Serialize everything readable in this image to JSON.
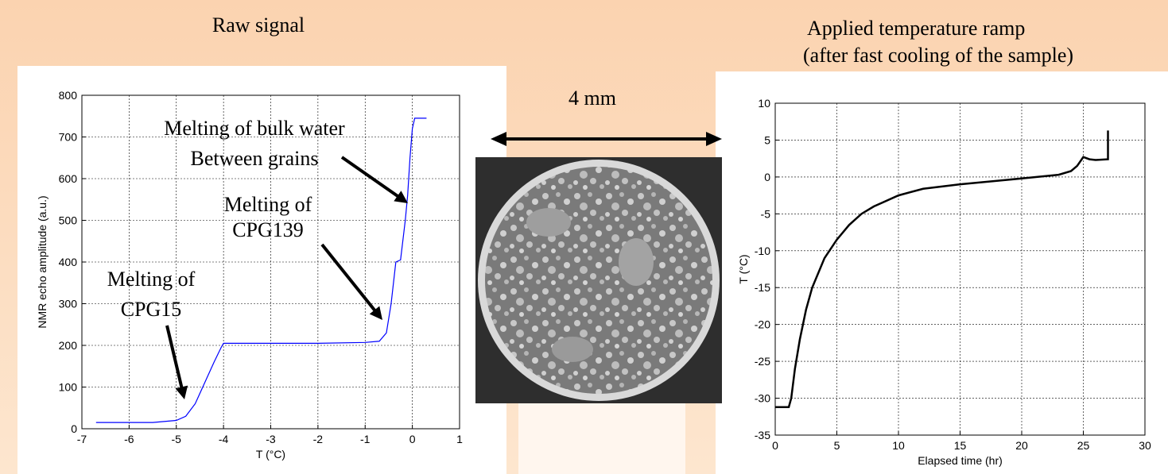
{
  "slide": {
    "left_title": "Raw signal",
    "right_title": [
      "Applied temperature ramp",
      "(after fast cooling of the sample)"
    ],
    "scale_label": "4 mm"
  },
  "chart_data": [
    {
      "type": "line",
      "x_label": "T (°C)",
      "y_label": "NMR echo amplitude (a.u.)",
      "x": [
        -6.7,
        -5.5,
        -5.0,
        -4.8,
        -4.6,
        -4.4,
        -4.2,
        -4.05,
        -4.0,
        -3.5,
        -2.0,
        -1.0,
        -0.7,
        -0.55,
        -0.45,
        -0.35,
        -0.25,
        -0.15,
        -0.1,
        -0.05,
        0.0,
        0.05,
        0.3
      ],
      "values": [
        15,
        15,
        20,
        30,
        60,
        110,
        160,
        195,
        205,
        205,
        205,
        207,
        210,
        230,
        300,
        400,
        405,
        500,
        560,
        650,
        720,
        745,
        745
      ],
      "color": "#0000ff",
      "xlim": [
        -7,
        1
      ],
      "xticks": [
        -7,
        -6,
        -5,
        -4,
        -3,
        -2,
        -1,
        0,
        1
      ],
      "ylim": [
        0,
        800
      ],
      "yticks": [
        0,
        100,
        200,
        300,
        400,
        500,
        600,
        700,
        800
      ],
      "grid": true,
      "annotations": [
        [
          "Melting of bulk water",
          "Between grains"
        ],
        [
          "Melting of",
          "CPG139"
        ],
        [
          "Melting of",
          "CPG15"
        ]
      ]
    },
    {
      "type": "line",
      "x_label": "Elapsed time (hr)",
      "y_label": "T (°C)",
      "x": [
        0,
        1.1,
        1.3,
        1.6,
        2,
        2.5,
        3,
        4,
        5,
        6,
        7,
        8,
        10,
        12,
        15,
        20,
        23,
        24,
        24.5,
        25,
        25.5,
        26,
        27,
        27
      ],
      "values": [
        -31.2,
        -31.2,
        -30,
        -26,
        -22,
        -18,
        -15,
        -11,
        -8.5,
        -6.5,
        -5,
        -4,
        -2.5,
        -1.6,
        -1,
        -0.2,
        0.3,
        0.8,
        1.5,
        2.7,
        2.4,
        2.3,
        2.4,
        6.3
      ],
      "color": "#000000",
      "xlim": [
        0,
        30
      ],
      "xticks": [
        0,
        5,
        10,
        15,
        20,
        25,
        30
      ],
      "ylim": [
        -35,
        10
      ],
      "yticks": [
        -35,
        -30,
        -25,
        -20,
        -15,
        -10,
        -5,
        0,
        5,
        10
      ],
      "grid": true
    }
  ]
}
